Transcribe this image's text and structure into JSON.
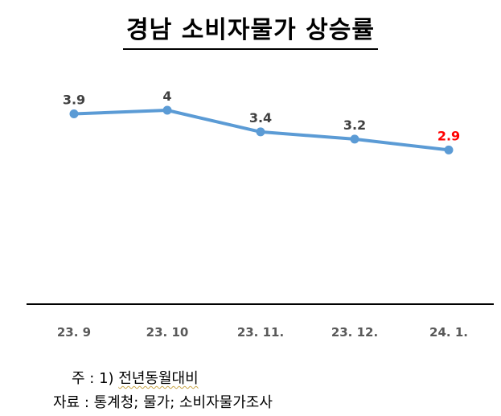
{
  "title": "경남  소비자물가  상승률",
  "chart_data": {
    "type": "line",
    "title": "경남  소비자물가  상승률",
    "categories": [
      "23. 9",
      "23. 10",
      "23. 11.",
      "23. 12.",
      "24. 1."
    ],
    "values": [
      3.9,
      4,
      3.4,
      3.2,
      2.9
    ],
    "data_labels": [
      "3.9",
      "4",
      "3.4",
      "3.2",
      "2.9"
    ],
    "ylim": [
      0,
      4.5
    ],
    "xlabel": "",
    "ylabel": "",
    "grid": false,
    "line_color": "#5b9bd5",
    "label_color": "#404040",
    "highlight_label_color": "#ff0000",
    "highlight_index": 4,
    "axis_color": "#000000"
  },
  "notes": {
    "note1_prefix": "주 : 1) ",
    "note1_text": "전년동월대비",
    "source": "자료 : 통계청; 물가; 소비자물가조사"
  }
}
